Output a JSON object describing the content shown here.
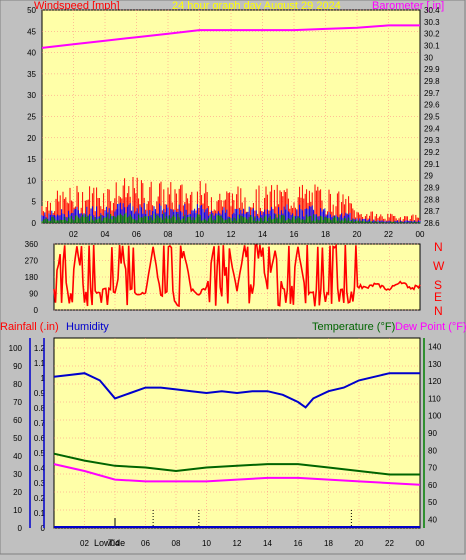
{
  "title": "24 hour graph day   August 29 2024",
  "colors": {
    "wind": "#ff0000",
    "gust": "#ff0000",
    "dir": "#0000ff",
    "wind_green": "#008000",
    "barometer": "#ff00ff",
    "humidity": "#0000cc",
    "temperature": "#006400",
    "dewpoint": "#ff00ff",
    "rain": "#0000cc",
    "plot_bg": "#ffffa8",
    "grid": "#ff8080",
    "frame": "#c0c0c0"
  },
  "panels": {
    "wind": {
      "left_label": "Windspeed [mph]",
      "right_label": "Barometer [.in]"
    },
    "direction": {
      "compass": [
        "N",
        "W",
        "S",
        "E",
        "N"
      ]
    },
    "bottom": {
      "rain_label": "Rainfall (.in)",
      "humidity_label": "Humidity",
      "temp_label": "Temperature (°F)",
      "dew_label": "Dew Point (°F)",
      "marker_label": "Low",
      "marker_label2": "Tide"
    }
  },
  "chart_data": [
    {
      "type": "line",
      "name": "wind-and-barometer",
      "x_ticks": [
        "02",
        "04",
        "06",
        "08",
        "10",
        "12",
        "14",
        "16",
        "18",
        "20",
        "22",
        "00"
      ],
      "y_left": {
        "label": "Windspeed [mph]",
        "ylim": [
          0,
          50
        ],
        "ticks": [
          0,
          5,
          10,
          15,
          20,
          25,
          30,
          35,
          40,
          45,
          50
        ]
      },
      "y_right": {
        "label": "Barometer [.in]",
        "ylim": [
          28.6,
          30.4
        ],
        "ticks": [
          "28.6",
          "28.7",
          "28.8",
          "28.9",
          "29",
          "29.1",
          "29.2",
          "29.3",
          "29.4",
          "29.5",
          "29.6",
          "29.7",
          "29.8",
          "29.9",
          "30",
          "30.1",
          "30.2",
          "30.3",
          "30.4"
        ]
      },
      "barometer": {
        "x": [
          0,
          2,
          4,
          6,
          8,
          10,
          12,
          14,
          16,
          18,
          20,
          22,
          24
        ],
        "y": [
          30.08,
          30.11,
          30.14,
          30.17,
          30.2,
          30.23,
          30.23,
          30.23,
          30.23,
          30.24,
          30.25,
          30.27,
          30.27
        ]
      },
      "wind_gust_envelope": {
        "x": [
          0,
          2,
          4,
          6,
          8,
          10,
          12,
          14,
          16,
          18,
          19.5,
          20,
          22,
          24
        ],
        "y": [
          6,
          8,
          9,
          10,
          9,
          9,
          8,
          8,
          9,
          8,
          6,
          3,
          2,
          2
        ]
      },
      "wind_avg_envelope": {
        "x": [
          0,
          2,
          4,
          6,
          8,
          10,
          12,
          14,
          16,
          18,
          19.5,
          20,
          22,
          24
        ],
        "y": [
          2,
          3,
          3.5,
          4,
          3.5,
          3.5,
          3,
          3,
          3.5,
          3,
          2,
          1,
          0.5,
          0.5
        ]
      },
      "grid": true
    },
    {
      "type": "line",
      "name": "wind-direction",
      "y_ticks": [
        0,
        90,
        180,
        270,
        360
      ],
      "ylim": [
        0,
        360
      ],
      "x": [
        0,
        0.5,
        1,
        1.5,
        2,
        2.5,
        3,
        3.5,
        4,
        4.5,
        5,
        5.5,
        6,
        6.5,
        7,
        7.5,
        8,
        8.5,
        9,
        9.5,
        10,
        10.5,
        11,
        11.5,
        12,
        12.5,
        13,
        13.5,
        14,
        14.5,
        15,
        15.5,
        16,
        16.5,
        17,
        17.5,
        18,
        18.5,
        19,
        19.5,
        20,
        20.5,
        21,
        21.5,
        22,
        22.5,
        23,
        23.5,
        24
      ],
      "y": [
        120,
        340,
        30,
        350,
        100,
        110,
        95,
        120,
        90,
        300,
        110,
        90,
        100,
        340,
        80,
        100,
        95,
        330,
        110,
        90,
        120,
        350,
        80,
        330,
        100,
        350,
        90,
        340,
        120,
        330,
        110,
        90,
        340,
        100,
        90,
        120,
        80,
        130,
        110,
        100,
        130,
        120,
        140,
        130,
        110,
        150,
        140,
        120,
        130
      ],
      "grid": true
    },
    {
      "type": "line",
      "name": "humidity-temperature-dewpoint",
      "x_ticks": [
        "02",
        "04",
        "06",
        "08",
        "10",
        "12",
        "14",
        "16",
        "18",
        "20",
        "22",
        "00"
      ],
      "y_left_rain": {
        "label": "Rainfall (.in)",
        "ylim": [
          0,
          1.2
        ],
        "ticks": [
          "0",
          "0.1",
          "0.2",
          "0.3",
          "0.4",
          "0.5",
          "0.6",
          "0.7",
          "0.8",
          "0.9",
          "1",
          "1.1",
          "1.2"
        ]
      },
      "y_left_humidity": {
        "label": "Humidity",
        "ylim": [
          0,
          100
        ],
        "ticks": [
          0,
          10,
          20,
          30,
          40,
          50,
          60,
          70,
          80,
          90,
          100
        ]
      },
      "y_right_temp": {
        "label": "Temperature (°F)",
        "ylim": [
          35,
          145
        ],
        "ticks": [
          40,
          50,
          60,
          70,
          80,
          90,
          100,
          110,
          120,
          130,
          140
        ]
      },
      "humidity": {
        "x": [
          0,
          1,
          2,
          3,
          4,
          5,
          6,
          7,
          8,
          9,
          10,
          11,
          12,
          13,
          14,
          15,
          16,
          16.5,
          17,
          18,
          19,
          20,
          21,
          22,
          23,
          24
        ],
        "y": [
          84,
          85,
          86,
          82,
          72,
          75,
          78,
          78,
          77,
          76,
          75,
          76,
          75,
          76,
          76,
          74,
          70,
          67,
          72,
          76,
          78,
          82,
          84,
          86,
          86,
          86
        ]
      },
      "temperature": {
        "x": [
          0,
          2,
          4,
          6,
          8,
          10,
          12,
          14,
          16,
          18,
          20,
          22,
          24
        ],
        "y": [
          78,
          74,
          71,
          70,
          68,
          70,
          71,
          72,
          72,
          70,
          68,
          66,
          66
        ]
      },
      "dewpoint": {
        "x": [
          0,
          2,
          4,
          6,
          8,
          10,
          12,
          14,
          16,
          18,
          20,
          22,
          24
        ],
        "y": [
          72,
          68,
          63,
          62,
          62,
          62,
          63,
          64,
          64,
          63,
          62,
          61,
          60
        ]
      },
      "rainfall": {
        "x": [
          0,
          24
        ],
        "y": [
          0,
          0
        ]
      },
      "tide_markers": [
        6.5,
        9.5,
        19.5
      ],
      "grid": true
    }
  ]
}
